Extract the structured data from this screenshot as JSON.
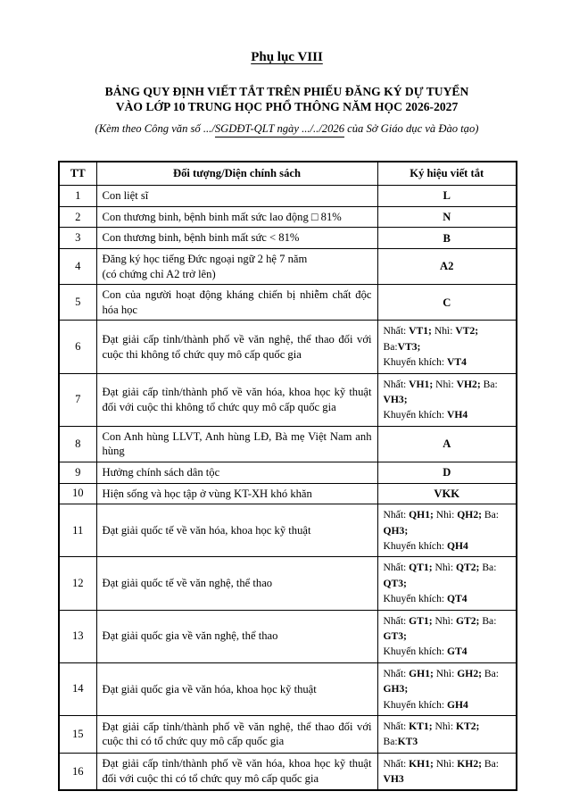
{
  "page": {
    "appendix_label": "Phụ lục VIII",
    "title_line1": "BẢNG QUY ĐỊNH VIẾT TẮT TRÊN PHIẾU ĐĂNG KÝ DỰ TUYỂN",
    "title_line2": "VÀO LỚP 10 TRUNG HỌC PHỔ THÔNG NĂM HỌC 2026-2027",
    "subtitle_prefix": "(Kèm theo Công văn số .../",
    "subtitle_underlined": "SGDĐT-QLT ngày .../../2026",
    "subtitle_suffix": " của Sở Giáo dục và Đào tạo)"
  },
  "table": {
    "headers": [
      "TT",
      "Đối tượng/Diện chính sách",
      "Ký hiệu viết tắt"
    ],
    "rows": [
      {
        "tt": "1",
        "desc_lines": [
          "Con liệt sĩ"
        ],
        "desc_align": "left",
        "code_align": "center",
        "code_lines": [
          [
            {
              "t": "L",
              "b": true
            }
          ]
        ]
      },
      {
        "tt": "2",
        "desc_lines": [
          "Con thương binh, bệnh binh mất sức lao động □ 81%"
        ],
        "desc_align": "left",
        "code_align": "center",
        "code_lines": [
          [
            {
              "t": "N",
              "b": true
            }
          ]
        ]
      },
      {
        "tt": "3",
        "desc_lines": [
          "Con thương binh, bệnh binh mất sức < 81%"
        ],
        "desc_align": "left",
        "code_align": "center",
        "code_lines": [
          [
            {
              "t": "B",
              "b": true
            }
          ]
        ]
      },
      {
        "tt": "4",
        "desc_lines": [
          "Đăng ký học tiếng Đức ngoại ngữ 2 hệ 7 năm",
          "(có chứng chỉ A2 trở lên)"
        ],
        "desc_align": "left",
        "code_align": "center",
        "code_lines": [
          [
            {
              "t": "A2",
              "b": true
            }
          ]
        ]
      },
      {
        "tt": "5",
        "desc_lines": [
          "Con của người hoạt động kháng chiến bị nhiễm chất độc hóa học"
        ],
        "desc_align": "justify",
        "code_align": "center",
        "code_lines": [
          [
            {
              "t": "C",
              "b": true
            }
          ]
        ]
      },
      {
        "tt": "6",
        "desc_lines": [
          "Đạt giải cấp tỉnh/thành phố về văn nghệ, thể thao đối với cuộc thi không tổ chức quy mô cấp quốc gia"
        ],
        "desc_align": "justify",
        "code_align": "left",
        "code_lines": [
          [
            {
              "t": "Nhất: "
            },
            {
              "t": "VT1;",
              "b": true
            },
            {
              "t": " Nhì: "
            },
            {
              "t": "VT2;",
              "b": true
            },
            {
              "t": " Ba:"
            },
            {
              "t": "VT3;",
              "b": true
            }
          ],
          [
            {
              "t": "Khuyến khích: "
            },
            {
              "t": "VT4",
              "b": true
            }
          ]
        ]
      },
      {
        "tt": "7",
        "desc_lines": [
          "Đạt giải cấp tỉnh/thành phố về văn hóa, khoa học kỹ thuật đối với cuộc thi không tổ chức quy mô cấp quốc gia"
        ],
        "desc_align": "justify",
        "code_align": "left",
        "code_lines": [
          [
            {
              "t": "Nhất: "
            },
            {
              "t": "VH1;",
              "b": true
            },
            {
              "t": " Nhì: "
            },
            {
              "t": "VH2;",
              "b": true
            },
            {
              "t": " Ba: "
            },
            {
              "t": "VH3;",
              "b": true
            }
          ],
          [
            {
              "t": "Khuyến khích: "
            },
            {
              "t": "VH4",
              "b": true
            }
          ]
        ]
      },
      {
        "tt": "8",
        "desc_lines": [
          "Con Anh hùng LLVT, Anh hùng LĐ, Bà mẹ Việt Nam anh hùng"
        ],
        "desc_align": "justify",
        "code_align": "center",
        "code_lines": [
          [
            {
              "t": "A",
              "b": true
            }
          ]
        ]
      },
      {
        "tt": "9",
        "desc_lines": [
          "Hưởng chính sách dân tộc"
        ],
        "desc_align": "left",
        "code_align": "center",
        "code_lines": [
          [
            {
              "t": "D",
              "b": true
            }
          ]
        ]
      },
      {
        "tt": "10",
        "desc_lines": [
          "Hiện sống và học tập ở vùng KT-XH khó khăn"
        ],
        "desc_align": "left",
        "code_align": "center",
        "code_lines": [
          [
            {
              "t": "VKK",
              "b": true
            }
          ]
        ]
      },
      {
        "tt": "11",
        "desc_lines": [
          "Đạt giải quốc tế về văn hóa, khoa học kỹ thuật"
        ],
        "desc_align": "left",
        "code_align": "left",
        "code_lines": [
          [
            {
              "t": "Nhất: "
            },
            {
              "t": "QH1;",
              "b": true
            },
            {
              "t": " Nhì: "
            },
            {
              "t": "QH2;",
              "b": true
            },
            {
              "t": " Ba: "
            },
            {
              "t": "QH3;",
              "b": true
            }
          ],
          [
            {
              "t": "Khuyến khích: "
            },
            {
              "t": "QH4",
              "b": true
            }
          ]
        ]
      },
      {
        "tt": "12",
        "desc_lines": [
          "Đạt giải quốc tế về văn nghệ, thể thao"
        ],
        "desc_align": "left",
        "code_align": "left",
        "code_lines": [
          [
            {
              "t": "Nhất: "
            },
            {
              "t": "QT1;",
              "b": true
            },
            {
              "t": " Nhì: "
            },
            {
              "t": "QT2;",
              "b": true
            },
            {
              "t": " Ba: "
            },
            {
              "t": "QT3;",
              "b": true
            }
          ],
          [
            {
              "t": "Khuyến khích: "
            },
            {
              "t": "QT4",
              "b": true
            }
          ]
        ]
      },
      {
        "tt": "13",
        "desc_lines": [
          "Đạt giải quốc gia về văn nghệ, thể thao"
        ],
        "desc_align": "left",
        "code_align": "left",
        "code_lines": [
          [
            {
              "t": "Nhất: "
            },
            {
              "t": "GT1;",
              "b": true
            },
            {
              "t": " Nhì: "
            },
            {
              "t": "GT2;",
              "b": true
            },
            {
              "t": " Ba: "
            },
            {
              "t": "GT3;",
              "b": true
            }
          ],
          [
            {
              "t": "Khuyến khích: "
            },
            {
              "t": "GT4",
              "b": true
            }
          ]
        ]
      },
      {
        "tt": "14",
        "desc_lines": [
          "Đạt giải quốc gia về văn hóa, khoa học kỹ thuật"
        ],
        "desc_align": "left",
        "code_align": "left",
        "code_lines": [
          [
            {
              "t": "Nhất: "
            },
            {
              "t": "GH1;",
              "b": true
            },
            {
              "t": " Nhì: "
            },
            {
              "t": "GH2;",
              "b": true
            },
            {
              "t": " Ba: "
            },
            {
              "t": "GH3;",
              "b": true
            }
          ],
          [
            {
              "t": "Khuyến khích: "
            },
            {
              "t": "GH4",
              "b": true
            }
          ]
        ]
      },
      {
        "tt": "15",
        "desc_lines": [
          "Đạt giải cấp tỉnh/thành phố về văn nghệ, thể thao đối với cuộc thi có tổ chức quy mô cấp quốc gia"
        ],
        "desc_align": "justify",
        "code_align": "left",
        "code_lines": [
          [
            {
              "t": "Nhất: "
            },
            {
              "t": "KT1;",
              "b": true
            },
            {
              "t": " Nhì: "
            },
            {
              "t": "KT2;",
              "b": true
            },
            {
              "t": " Ba:"
            },
            {
              "t": "KT3",
              "b": true
            }
          ]
        ]
      },
      {
        "tt": "16",
        "desc_lines": [
          "Đạt giải cấp tỉnh/thành phố về văn hóa, khoa học kỹ thuật đối với cuộc thi có tổ chức quy mô cấp quốc gia"
        ],
        "desc_align": "justify",
        "code_align": "left",
        "code_lines": [
          [
            {
              "t": "Nhất: "
            },
            {
              "t": "KH1;",
              "b": true
            },
            {
              "t": " Nhì: "
            },
            {
              "t": "KH2;",
              "b": true
            },
            {
              "t": " Ba: "
            },
            {
              "t": "VH3",
              "b": true
            }
          ]
        ]
      }
    ]
  }
}
